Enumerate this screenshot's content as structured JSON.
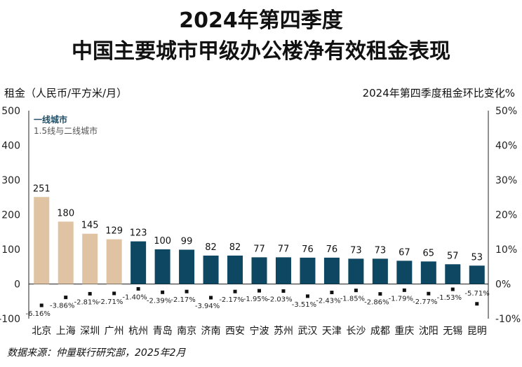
{
  "title_line1": "2024年第四季度",
  "title_line2": "中国主要城市甲级办公楼净有效租金表现",
  "left_axis_title": "租金（人民币/平方米/月）",
  "right_axis_title": "2024年第四季度租金环比变化%",
  "source": "数据来源：仲量联行研究部，2025年2月",
  "colors": {
    "tier1": "#dfc3a3",
    "tier2": "#0d4762",
    "marker": "#111111"
  },
  "chart_data": {
    "type": "bar",
    "legend": [
      "一线城市",
      "1.5线与二线城市"
    ],
    "categories": [
      "北京",
      "上海",
      "深圳",
      "广州",
      "杭州",
      "青岛",
      "南京",
      "济南",
      "西安",
      "宁波",
      "苏州",
      "武汉",
      "天津",
      "长沙",
      "成都",
      "重庆",
      "沈阳",
      "无锡",
      "昆明"
    ],
    "series": [
      {
        "name": "",
        "values": [
          251,
          180,
          145,
          129,
          123,
          100,
          99,
          82,
          82,
          77,
          77,
          76,
          76,
          73,
          73,
          67,
          65,
          57,
          53
        ]
      },
      {
        "name": "",
        "values": [
          -6.16,
          -3.86,
          -2.81,
          -2.71,
          -1.4,
          -2.39,
          -2.17,
          -3.94,
          -2.17,
          -1.95,
          -2.03,
          -3.51,
          -2.43,
          -1.85,
          -2.86,
          -1.79,
          -2.77,
          -1.53,
          -5.71
        ]
      }
    ],
    "value_labels": [
      "251",
      "180",
      "145",
      "129",
      "123",
      "100",
      "99",
      "82",
      "82",
      "77",
      "77",
      "76",
      "76",
      "73",
      "73",
      "67",
      "65",
      "57",
      "53"
    ],
    "change_labels": [
      "-6.16%",
      "-3.86%",
      "-2.81%",
      "-2.71%",
      "-1.40%",
      "-2.39%",
      "-2.17%",
      "-3.94%",
      "-2.17%",
      "-1.95%",
      "-2.03%",
      "-3.51%",
      "-2.43%",
      "-1.85%",
      "-2.86%",
      "-1.79%",
      "-2.77%",
      "-1.53%",
      "-5.71%"
    ],
    "tier": [
      1,
      1,
      1,
      1,
      2,
      2,
      2,
      2,
      2,
      2,
      2,
      2,
      2,
      2,
      2,
      2,
      2,
      2,
      2
    ],
    "ylim_left": [
      -100,
      500
    ],
    "ylim_right": [
      -10,
      50
    ],
    "yticks_left": [
      "-100",
      "0",
      "100",
      "200",
      "300",
      "400",
      "500"
    ],
    "yticks_right": [
      "-10%",
      "0%",
      "10%",
      "20%",
      "30%",
      "40%",
      "50%"
    ],
    "grid": false
  }
}
